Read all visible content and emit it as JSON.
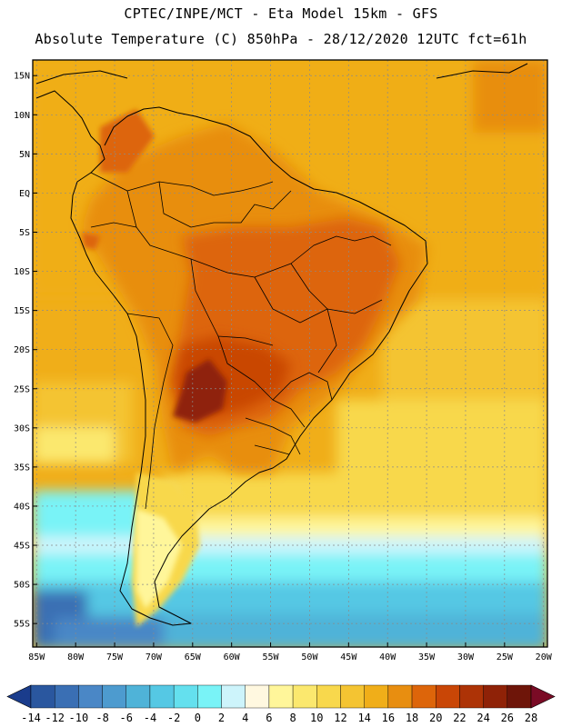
{
  "header": {
    "line1": "CPTEC/INPE/MCT -  Eta Model 15km - GFS",
    "line2": "Absolute Temperature (C) 850hPa - 28/12/2020 12UTC fct=61h"
  },
  "map": {
    "lat_labels": [
      "15N",
      "10N",
      "5N",
      "EQ",
      "5S",
      "10S",
      "15S",
      "20S",
      "25S",
      "30S",
      "35S",
      "40S",
      "45S",
      "50S",
      "55S"
    ],
    "lat_values": [
      15,
      10,
      5,
      0,
      -5,
      -10,
      -15,
      -20,
      -25,
      -30,
      -35,
      -40,
      -45,
      -50,
      -55
    ],
    "lon_labels": [
      "85W",
      "80W",
      "75W",
      "70W",
      "65W",
      "60W",
      "55W",
      "50W",
      "45W",
      "40W",
      "35W",
      "30W",
      "25W",
      "20W"
    ],
    "lon_values": [
      -85,
      -80,
      -75,
      -70,
      -65,
      -60,
      -55,
      -50,
      -45,
      -40,
      -35,
      -30,
      -25,
      -20
    ],
    "extent": {
      "lon_min": -85.5,
      "lon_max": -19.5,
      "lat_min": -58,
      "lat_max": 17
    }
  },
  "colorbar": {
    "labels": [
      "-14",
      "-12",
      "-10",
      "-8",
      "-6",
      "-4",
      "-2",
      "0",
      "2",
      "4",
      "6",
      "8",
      "10",
      "12",
      "14",
      "16",
      "18",
      "20",
      "22",
      "24",
      "26",
      "28"
    ],
    "colors": [
      "#1a3c8c",
      "#2a579f",
      "#3a6fb4",
      "#4a87c6",
      "#4d9bcf",
      "#4fb3d8",
      "#55c8e4",
      "#64e0ee",
      "#79f3f7",
      "#cdf4fb",
      "#fff8e0",
      "#fff69a",
      "#fbe86e",
      "#f8d84c",
      "#f4c432",
      "#f0ae19",
      "#e88e10",
      "#dd650a",
      "#c94606",
      "#ad3306",
      "#8f2207",
      "#6e1509",
      "#7a0b25"
    ]
  }
}
